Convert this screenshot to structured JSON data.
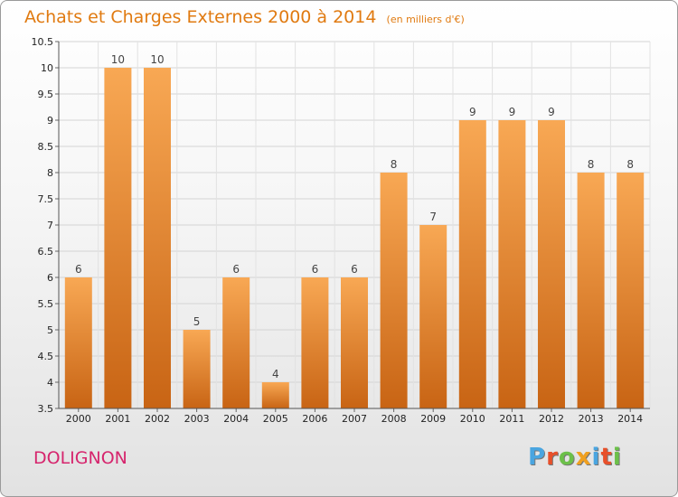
{
  "header": {
    "title": "Achats et Charges Externes 2000 à 2014",
    "subtitle": "(en milliers d'€)"
  },
  "footer": {
    "commune": "DOLIGNON",
    "brand": "Proxiti",
    "brand_colors": [
      "#4aa5e0",
      "#e8502a",
      "#6cc04a",
      "#f0a020",
      "#4aa5e0",
      "#e8502a",
      "#6cc04a"
    ]
  },
  "colors": {
    "bar_top": "#f8a854",
    "bar_bottom": "#c86414",
    "title": "#e07a10",
    "commune": "#d6256d"
  },
  "chart_data": {
    "type": "bar",
    "title": "Achats et Charges Externes 2000 à 2014",
    "subtitle": "(en milliers d'€)",
    "categories": [
      "2000",
      "2001",
      "2002",
      "2003",
      "2004",
      "2005",
      "2006",
      "2007",
      "2008",
      "2009",
      "2010",
      "2011",
      "2012",
      "2013",
      "2014"
    ],
    "values": [
      6,
      10,
      10,
      5,
      6,
      4,
      6,
      6,
      8,
      7,
      9,
      9,
      9,
      8,
      8
    ],
    "value_labels": [
      "6",
      "10",
      "10",
      "5",
      "6",
      "4",
      "6",
      "6",
      "8",
      "7",
      "9",
      "9",
      "9",
      "8",
      "8"
    ],
    "ylim": [
      3.5,
      10.5
    ],
    "yticks": [
      3.5,
      4,
      4.5,
      5,
      5.5,
      6,
      6.5,
      7,
      7.5,
      8,
      8.5,
      9,
      9.5,
      10,
      10.5
    ],
    "ytick_labels": [
      "3.5",
      "4",
      "4.5",
      "5",
      "5.5",
      "6",
      "6.5",
      "7",
      "7.5",
      "8",
      "8.5",
      "9",
      "9.5",
      "10",
      "10.5"
    ],
    "grid": true,
    "xlabel": "",
    "ylabel": ""
  }
}
